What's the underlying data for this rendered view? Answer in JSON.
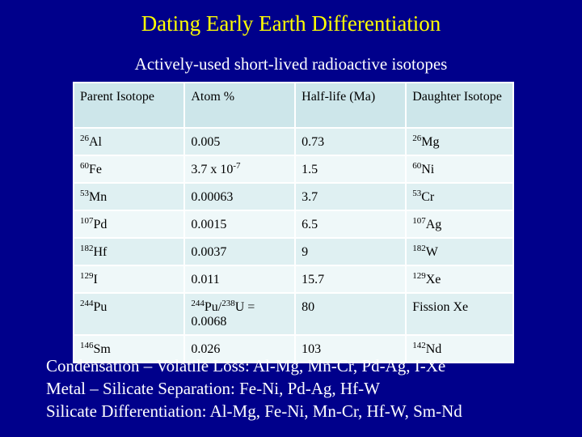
{
  "title": "Dating Early Earth Differentiation",
  "subtitle": "Actively-used short-lived radioactive isotopes",
  "table": {
    "headers": [
      "Parent Isotope",
      "Atom %",
      "Half-life (Ma)",
      "Daughter Isotope"
    ],
    "rows": [
      {
        "parent_mass": "26",
        "parent_el": "Al",
        "atom_a": "0.005",
        "atom_exp": "",
        "atom_b": "",
        "atom_c": "",
        "half_life": "0.73",
        "daughter_mass": "26",
        "daughter_el": "Mg"
      },
      {
        "parent_mass": "60",
        "parent_el": "Fe",
        "atom_a": "3.7 x 10",
        "atom_exp": "-7",
        "atom_b": "",
        "atom_c": "",
        "half_life": "1.5",
        "daughter_mass": "60",
        "daughter_el": "Ni"
      },
      {
        "parent_mass": "53",
        "parent_el": "Mn",
        "atom_a": "0.00063",
        "atom_exp": "",
        "atom_b": "",
        "atom_c": "",
        "half_life": "3.7",
        "daughter_mass": "53",
        "daughter_el": "Cr"
      },
      {
        "parent_mass": "107",
        "parent_el": "Pd",
        "atom_a": "0.0015",
        "atom_exp": "",
        "atom_b": "",
        "atom_c": "",
        "half_life": "6.5",
        "daughter_mass": "107",
        "daughter_el": "Ag"
      },
      {
        "parent_mass": "182",
        "parent_el": "Hf",
        "atom_a": "0.0037",
        "atom_exp": "",
        "atom_b": "",
        "atom_c": "",
        "half_life": "9",
        "daughter_mass": "182",
        "daughter_el": "W"
      },
      {
        "parent_mass": "129",
        "parent_el": "I",
        "atom_a": "0.011",
        "atom_exp": "",
        "atom_b": "",
        "atom_c": "",
        "half_life": "15.7",
        "daughter_mass": "129",
        "daughter_el": "Xe"
      },
      {
        "parent_mass": "244",
        "parent_el": "Pu",
        "atom_pre": "244",
        "atom_a": "Pu/",
        "atom_exp": "238",
        "atom_b": "U =",
        "atom_c": "0.0068",
        "half_life": "80",
        "daughter_mass": "",
        "daughter_el": "Fission Xe"
      },
      {
        "parent_mass": "146",
        "parent_el": "Sm",
        "atom_a": "0.026",
        "atom_exp": "",
        "atom_b": "",
        "atom_c": "",
        "half_life": "103",
        "daughter_mass": "142",
        "daughter_el": "Nd"
      }
    ]
  },
  "notes": [
    "Condensation – Volatile Loss: Al-Mg, Mn-Cr, Pd-Ag, I-Xe",
    "Metal – Silicate Separation: Fe-Ni, Pd-Ag, Hf-W",
    "Silicate Differentiation: Al-Mg, Fe-Ni, Mn-Cr, Hf-W, Sm-Nd"
  ],
  "colors": {
    "background": "#00008b",
    "title": "#ffff00",
    "text": "#ffffff",
    "header_fill": "#cde6ea",
    "row_fill_a": "#dff0f2",
    "row_fill_b": "#eff8f9"
  }
}
